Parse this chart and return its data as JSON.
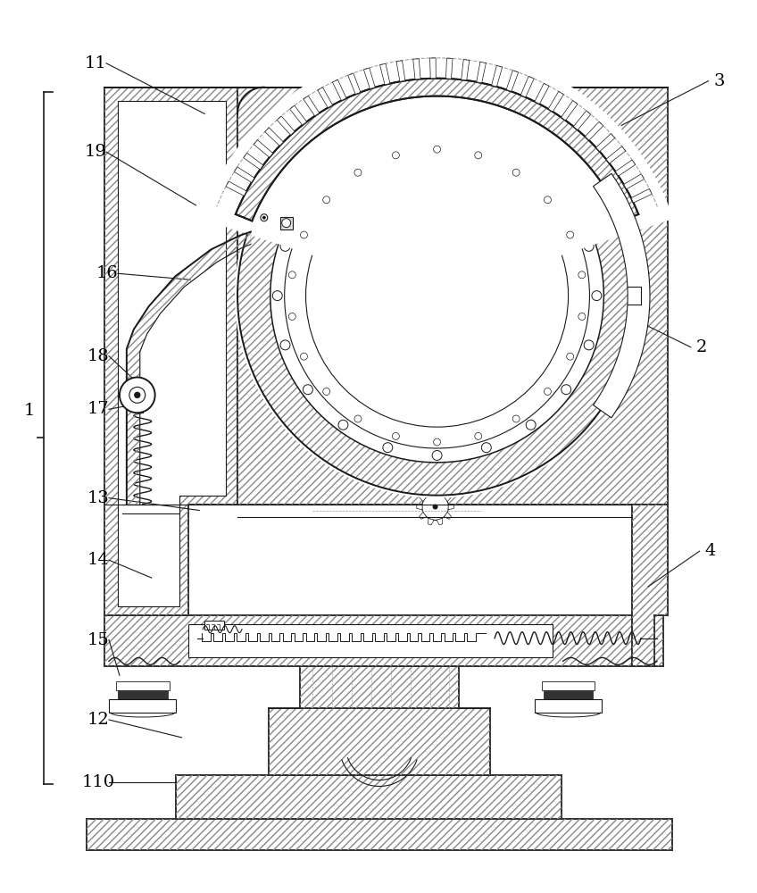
{
  "background_color": "#ffffff",
  "line_color": "#1a1a1a",
  "figsize": [
    8.48,
    10.0
  ],
  "dpi": 100,
  "annotations": [
    [
      "11",
      105,
      68,
      228,
      125
    ],
    [
      "19",
      105,
      168,
      218,
      228
    ],
    [
      "16",
      118,
      305,
      212,
      312
    ],
    [
      "18",
      108,
      398,
      152,
      428
    ],
    [
      "17",
      108,
      458,
      136,
      455
    ],
    [
      "13",
      108,
      558,
      222,
      572
    ],
    [
      "14",
      108,
      628,
      168,
      648
    ],
    [
      "15",
      108,
      718,
      132,
      758
    ],
    [
      "12",
      108,
      808,
      202,
      828
    ],
    [
      "110",
      108,
      878,
      196,
      878
    ],
    [
      "2",
      788,
      388,
      715,
      358
    ],
    [
      "3",
      808,
      88,
      698,
      138
    ],
    [
      "4",
      798,
      618,
      728,
      658
    ]
  ]
}
